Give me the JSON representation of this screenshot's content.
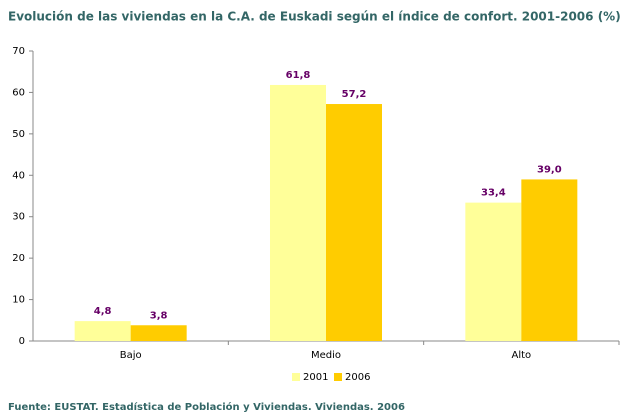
{
  "chart_data": {
    "type": "bar",
    "title": "Evolución de las viviendas en la C.A. de Euskadi según el índice de confort. 2001-2006 (%)",
    "categories": [
      "Bajo",
      "Medio",
      "Alto"
    ],
    "series": [
      {
        "name": "2001",
        "color": "#ffff99",
        "values": [
          4.8,
          61.8,
          33.4
        ],
        "value_labels": [
          "4,8",
          "61,8",
          "33,4"
        ]
      },
      {
        "name": "2006",
        "color": "#ffcc00",
        "values": [
          3.8,
          57.2,
          39.0
        ],
        "value_labels": [
          "3,8",
          "57,2",
          "39,0"
        ]
      }
    ],
    "ylim": [
      0,
      70
    ],
    "yticks": [
      0,
      10,
      20,
      30,
      40,
      50,
      60,
      70
    ],
    "grid": false,
    "legend": "bottom",
    "source": "Fuente: EUSTAT. Estadística de Población y Viviendas. Viviendas. 2006"
  }
}
